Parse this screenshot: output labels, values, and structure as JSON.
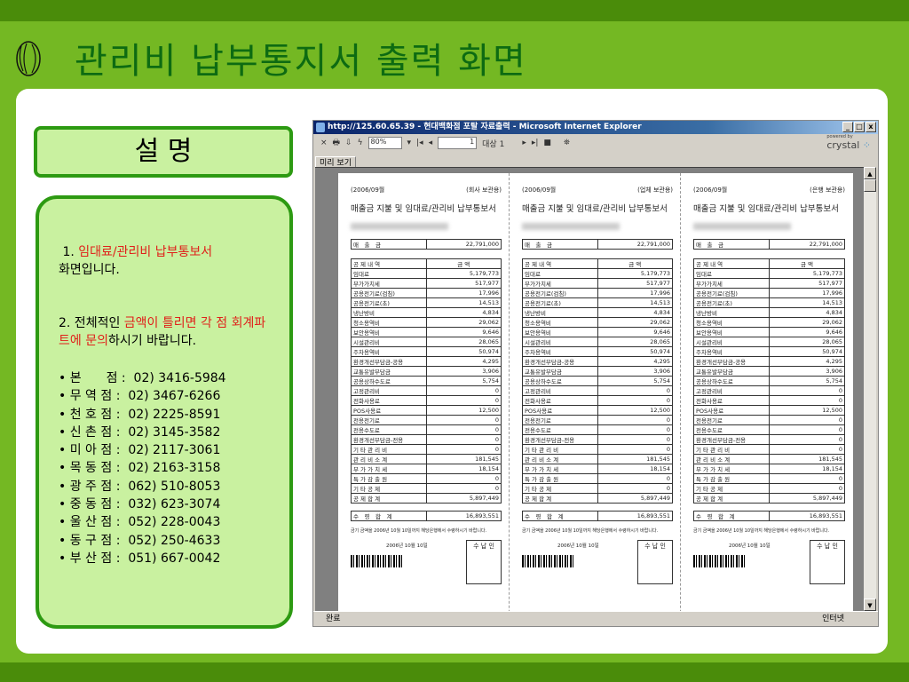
{
  "slide": {
    "title": "관리비 납부통지서 출력 화면",
    "desc_label": "설 명",
    "item1_prefix": "1. ",
    "item1_red": "임대료/관리비 납부통보서",
    "item1_suffix": "화면입니다.",
    "item2_prefix": "2. 전체적인 ",
    "item2_red": "금액이 틀리면 각 점 회계파트에 문의",
    "item2_suffix": "하시기 바랍니다.",
    "contacts": [
      "• 본　　점 :  02) 3416-5984",
      "• 무 역 점 :  02) 3467-6266",
      "• 천 호 점 :  02) 2225-8591",
      "• 신 촌 점 :  02) 3145-3582",
      "• 미 아 점 :  02) 2117-3061",
      "• 목 동 점 :  02) 2163-3158",
      "• 광 주 점 :  062) 510-8053",
      "• 중 동 점 :  032) 623-3074",
      "• 울 산 점 :  052) 228-0043",
      "• 동 구 점 :  052) 250-4633",
      "• 부 산 점 :  051) 667-0042"
    ]
  },
  "browser": {
    "title": "http://125.60.65.39 - 현대백화점 포탈 자료출력 - Microsoft Internet Explorer",
    "zoom": "80%",
    "page": "1",
    "page_of": "대상 1",
    "tab": "미리 보기",
    "brand": "crystal",
    "brand_small": "powered by",
    "status": "완료",
    "zone": "인터넷"
  },
  "report": {
    "period": "(2006/09월",
    "title": "매출금 지불 및 임대료/관리비 납부통보서",
    "copies": [
      "(회사 보관용)",
      "(업체 보관용)",
      "(은행 보관용)"
    ],
    "sales_label": "매　출　금",
    "sales": "22,791,000",
    "header": [
      "공 제 내 역",
      "금 액"
    ],
    "rows": [
      [
        "임대료",
        "5,179,773"
      ],
      [
        "부가가치세",
        "517,977"
      ],
      [
        "공용전기료(검침)",
        "17,996"
      ],
      [
        "공용전기료(초)",
        "14,513"
      ],
      [
        "냉난방비",
        "4,834"
      ],
      [
        "청소용역비",
        "29,062"
      ],
      [
        "보안용역비",
        "9,646"
      ],
      [
        "시설관리비",
        "28,065"
      ],
      [
        "주차용역비",
        "50,974"
      ],
      [
        "환경개선부담금-공용",
        "4,295"
      ],
      [
        "교통유발부담금",
        "3,906"
      ],
      [
        "공용상하수도료",
        "5,754"
      ],
      [
        "고정관리비",
        "0"
      ],
      [
        "전화사용료",
        "0"
      ],
      [
        "POS사용료",
        "12,500"
      ],
      [
        "전용전기료",
        "0"
      ],
      [
        "전용수도료",
        "0"
      ],
      [
        "환경개선부담금-전용",
        "0"
      ],
      [
        "기 타 관 리 비",
        "0"
      ],
      [
        "관 리 비 소 계",
        "181,545"
      ],
      [
        "부 가 가 치 세",
        "18,154"
      ],
      [
        "특 가 감 출 원",
        "0"
      ],
      [
        "기 타 공 제",
        "0"
      ],
      [
        "공 제 합 계",
        "5,897,449"
      ]
    ],
    "total_label": "수　령　합　계",
    "total": "16,893,551",
    "note": "금기 금액을 2006년 10월 10일까지 해당은행에서 수령하시기 바랍니다.",
    "date": "2006년 10월 10일",
    "stamp": "수 납 인"
  }
}
